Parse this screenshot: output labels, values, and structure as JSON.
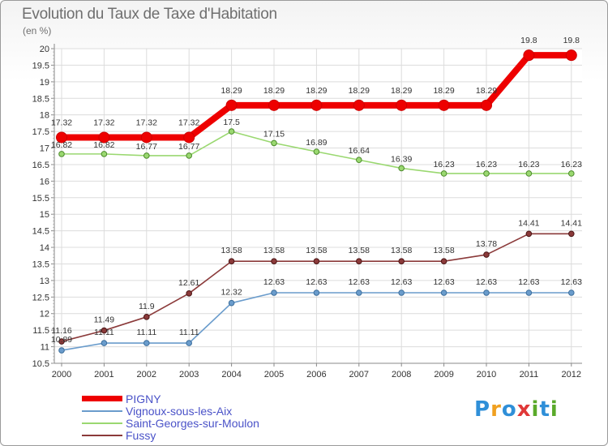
{
  "header": {
    "title": "Evolution du Taux de Taxe d'Habitation",
    "unit": "(en %)"
  },
  "logo": {
    "letters": [
      "P",
      "r",
      "o",
      "x",
      "i",
      "t",
      "i"
    ],
    "colors": [
      "#2f8fd8",
      "#f0a020",
      "#2f8fd8",
      "#e03838",
      "#5aaa2a",
      "#2f8fd8",
      "#5aaa2a"
    ]
  },
  "chart_data": {
    "type": "line",
    "x": [
      "2000",
      "2001",
      "2002",
      "2003",
      "2004",
      "2005",
      "2006",
      "2007",
      "2008",
      "2009",
      "2010",
      "2011",
      "2012"
    ],
    "ylim": [
      10.5,
      20
    ],
    "yticks": [
      "10.5",
      "11",
      "11.5",
      "12",
      "12.5",
      "13",
      "13.5",
      "14",
      "14.5",
      "15",
      "15.5",
      "16",
      "16.5",
      "17",
      "17.5",
      "18",
      "18.5",
      "19",
      "19.5",
      "20"
    ],
    "grid": true,
    "legend_position": "bottom-left",
    "series": [
      {
        "name": "PIGNY",
        "color": "#ee0000",
        "values": [
          17.32,
          17.32,
          17.32,
          17.32,
          18.29,
          18.29,
          18.29,
          18.29,
          18.29,
          18.29,
          18.29,
          19.8,
          19.8
        ],
        "labels": [
          "17.32",
          "17.32",
          "17.32",
          "17.32",
          "18.29",
          "18.29",
          "18.29",
          "18.29",
          "18.29",
          "18.29",
          "18.29",
          "19.8",
          "19.8"
        ]
      },
      {
        "name": "Vignoux-sous-les-Aix",
        "color": "#6a9ccc",
        "values": [
          10.89,
          11.11,
          11.11,
          11.11,
          12.32,
          12.63,
          12.63,
          12.63,
          12.63,
          12.63,
          12.63,
          12.63,
          12.63
        ],
        "labels": [
          "10.89",
          "11.11",
          "11.11",
          "11.11",
          "12.32",
          "12.63",
          "12.63",
          "12.63",
          "12.63",
          "12.63",
          "12.63",
          "12.63",
          "12.63"
        ]
      },
      {
        "name": "Saint-Georges-sur-Moulon",
        "color": "#9ad870",
        "values": [
          16.82,
          16.82,
          16.77,
          16.77,
          17.5,
          17.15,
          16.89,
          16.64,
          16.39,
          16.23,
          16.23,
          16.23,
          16.23
        ],
        "labels": [
          "16.82",
          "16.82",
          "16.77",
          "16.77",
          "17.5",
          "17.15",
          "16.89",
          "16.64",
          "16.39",
          "16.23",
          "16.23",
          "16.23",
          "16.23"
        ]
      },
      {
        "name": "Fussy",
        "color": "#8b3a3a",
        "values": [
          11.16,
          11.49,
          11.9,
          12.61,
          13.58,
          13.58,
          13.58,
          13.58,
          13.58,
          13.58,
          13.78,
          14.41,
          14.41
        ],
        "labels": [
          "11.16",
          "11.49",
          "11.9",
          "12.61",
          "13.58",
          "13.58",
          "13.58",
          "13.58",
          "13.58",
          "13.58",
          "13.78",
          "14.41",
          "14.41"
        ]
      }
    ]
  }
}
